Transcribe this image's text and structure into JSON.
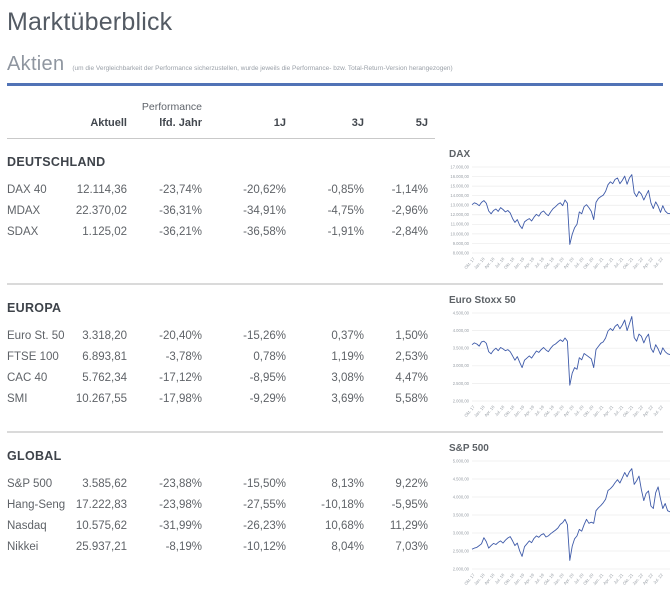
{
  "page": {
    "title": "Marktüberblick"
  },
  "section": {
    "title": "Aktien",
    "note": "(um die Vergleichbarkeit der Performance sicherzustellen, wurde jeweils die Performance- bzw. Total-Return-Version herangezogen)"
  },
  "colors": {
    "accent_blue": "#5173b6",
    "chart_line": "#3f5ba9",
    "grid_line": "#ebebeb"
  },
  "table": {
    "group_header": "Performance",
    "columns": [
      "Aktuell",
      "lfd. Jahr",
      "1J",
      "3J",
      "5J"
    ],
    "sections": [
      {
        "name": "DEUTSCHLAND",
        "rows": [
          {
            "label": "DAX 40",
            "values": [
              "12.114,36",
              "-23,74%",
              "-20,62%",
              "-0,85%",
              "-1,14%"
            ]
          },
          {
            "label": "MDAX",
            "values": [
              "22.370,02",
              "-36,31%",
              "-34,91%",
              "-4,75%",
              "-2,96%"
            ]
          },
          {
            "label": "SDAX",
            "values": [
              "1.125,02",
              "-36,21%",
              "-36,58%",
              "-1,91%",
              "-2,84%"
            ]
          }
        ]
      },
      {
        "name": "EUROPA",
        "rows": [
          {
            "label": "Euro St. 50",
            "values": [
              "3.318,20",
              "-20,40%",
              "-15,26%",
              "0,37%",
              "1,50%"
            ]
          },
          {
            "label": "FTSE 100",
            "values": [
              "6.893,81",
              "-3,78%",
              "0,78%",
              "1,19%",
              "2,53%"
            ]
          },
          {
            "label": "CAC 40",
            "values": [
              "5.762,34",
              "-17,12%",
              "-8,95%",
              "3,08%",
              "4,47%"
            ]
          },
          {
            "label": "SMI",
            "values": [
              "10.267,55",
              "-17,98%",
              "-9,29%",
              "3,69%",
              "5,58%"
            ]
          }
        ]
      },
      {
        "name": "GLOBAL",
        "rows": [
          {
            "label": "S&P 500",
            "values": [
              "3.585,62",
              "-23,88%",
              "-15,50%",
              "8,13%",
              "9,22%"
            ]
          },
          {
            "label": "Hang-Seng",
            "values": [
              "17.222,83",
              "-23,98%",
              "-27,55%",
              "-10,18%",
              "-5,95%"
            ]
          },
          {
            "label": "Nasdaq",
            "values": [
              "10.575,62",
              "-31,99%",
              "-26,23%",
              "10,68%",
              "11,29%"
            ]
          },
          {
            "label": "Nikkei",
            "values": [
              "25.937,21",
              "-8,19%",
              "-10,12%",
              "8,04%",
              "7,03%"
            ]
          }
        ]
      }
    ]
  },
  "chart_data": [
    {
      "type": "line",
      "title": "DAX",
      "ylim": [
        8000,
        17000
      ],
      "y_ticks": [
        "8.000,00",
        "9.000,00",
        "10.000,00",
        "11.000,00",
        "12.000,00",
        "13.000,00",
        "14.000,00",
        "15.000,00",
        "16.000,00",
        "17.000,00"
      ],
      "x_labels": [
        "Okt. 17",
        "Jan. 18",
        "Apr. 18",
        "Jul. 18",
        "Okt. 18",
        "Jan. 19",
        "Apr. 19",
        "Jul. 19",
        "Okt. 19",
        "Jan. 20",
        "Apr. 20",
        "Jul. 20",
        "Okt. 20",
        "Jan. 21",
        "Apr. 21",
        "Jul. 21",
        "Okt. 21",
        "Jan. 22",
        "Apr. 22",
        "Jul. 22"
      ],
      "values": [
        13050,
        13250,
        13150,
        12950,
        13300,
        13480,
        13200,
        12400,
        12100,
        12450,
        12600,
        12350,
        12750,
        12550,
        12300,
        12450,
        12200,
        11600,
        11200,
        11500,
        10900,
        10550,
        11250,
        11450,
        11600,
        11350,
        11750,
        12050,
        11850,
        12250,
        12400,
        12100,
        11900,
        12300,
        12650,
        12850,
        13100,
        13250,
        12950,
        13550,
        13200,
        8900,
        9950,
        10650,
        11000,
        12300,
        12100,
        12850,
        13050,
        12750,
        12350,
        11500,
        13300,
        13700,
        13900,
        14050,
        14450,
        15150,
        15450,
        15250,
        15700,
        15850,
        15250,
        15600,
        16050,
        15200,
        15850,
        16200,
        14300,
        13900,
        14450,
        14150,
        13550,
        14050,
        14550,
        13250,
        12650,
        13350,
        12900,
        12250,
        12950,
        12400,
        12150,
        12114
      ]
    },
    {
      "type": "line",
      "title": "Euro Stoxx 50",
      "ylim": [
        2000,
        4500
      ],
      "y_ticks": [
        "2.000,00",
        "2.500,00",
        "3.000,00",
        "3.500,00",
        "4.000,00",
        "4.500,00"
      ],
      "x_labels": [
        "Okt. 17",
        "Jan. 18",
        "Apr. 18",
        "Jul. 18",
        "Okt. 18",
        "Jan. 19",
        "Apr. 19",
        "Jul. 19",
        "Okt. 19",
        "Jan. 20",
        "Apr. 20",
        "Jul. 20",
        "Okt. 20",
        "Jan. 21",
        "Apr. 21",
        "Jul. 21",
        "Okt. 21",
        "Jan. 22",
        "Apr. 22",
        "Jul. 22"
      ],
      "values": [
        3600,
        3650,
        3620,
        3560,
        3680,
        3700,
        3640,
        3400,
        3340,
        3440,
        3500,
        3430,
        3520,
        3480,
        3430,
        3460,
        3400,
        3280,
        3160,
        3260,
        3100,
        2950,
        3160,
        3220,
        3280,
        3220,
        3320,
        3420,
        3380,
        3460,
        3520,
        3450,
        3400,
        3500,
        3580,
        3620,
        3680,
        3740,
        3690,
        3790,
        3700,
        2450,
        2790,
        2950,
        2900,
        3230,
        3170,
        3350,
        3300,
        3250,
        3200,
        2950,
        3460,
        3550,
        3640,
        3680,
        3790,
        3990,
        4060,
        4000,
        4120,
        4180,
        4050,
        4160,
        4300,
        4000,
        4190,
        4400,
        3800,
        3700,
        3900,
        3840,
        3650,
        3800,
        3900,
        3500,
        3380,
        3600,
        3480,
        3320,
        3510,
        3400,
        3340,
        3318
      ]
    },
    {
      "type": "line",
      "title": "S&P 500",
      "ylim": [
        2000,
        5000
      ],
      "y_ticks": [
        "2.000,00",
        "2.500,00",
        "3.000,00",
        "3.500,00",
        "4.000,00",
        "4.500,00",
        "5.000,00"
      ],
      "x_labels": [
        "Okt. 17",
        "Jan. 18",
        "Apr. 18",
        "Jul. 18",
        "Okt. 18",
        "Jan. 19",
        "Apr. 19",
        "Jul. 19",
        "Okt. 19",
        "Jan. 20",
        "Apr. 20",
        "Jul. 20",
        "Okt. 20",
        "Jan. 21",
        "Apr. 21",
        "Jul. 21",
        "Okt. 21",
        "Jan. 22",
        "Apr. 22",
        "Jul. 22"
      ],
      "values": [
        2550,
        2580,
        2600,
        2650,
        2700,
        2870,
        2760,
        2580,
        2650,
        2710,
        2680,
        2740,
        2780,
        2720,
        2800,
        2860,
        2900,
        2780,
        2650,
        2720,
        2500,
        2350,
        2620,
        2700,
        2780,
        2730,
        2850,
        2920,
        2880,
        2950,
        2980,
        2890,
        2920,
        2980,
        3030,
        3080,
        3140,
        3240,
        3290,
        3380,
        3230,
        2240,
        2630,
        2840,
        2920,
        3100,
        3050,
        3230,
        3380,
        3270,
        3300,
        3270,
        3620,
        3700,
        3760,
        3840,
        3940,
        4180,
        4230,
        4300,
        4400,
        4480,
        4390,
        4530,
        4680,
        4560,
        4700,
        4790,
        4350,
        4450,
        4580,
        4200,
        3900,
        4100,
        4170,
        3750,
        3680,
        4120,
        4280,
        3950,
        3680,
        3820,
        3620,
        3586
      ]
    }
  ]
}
